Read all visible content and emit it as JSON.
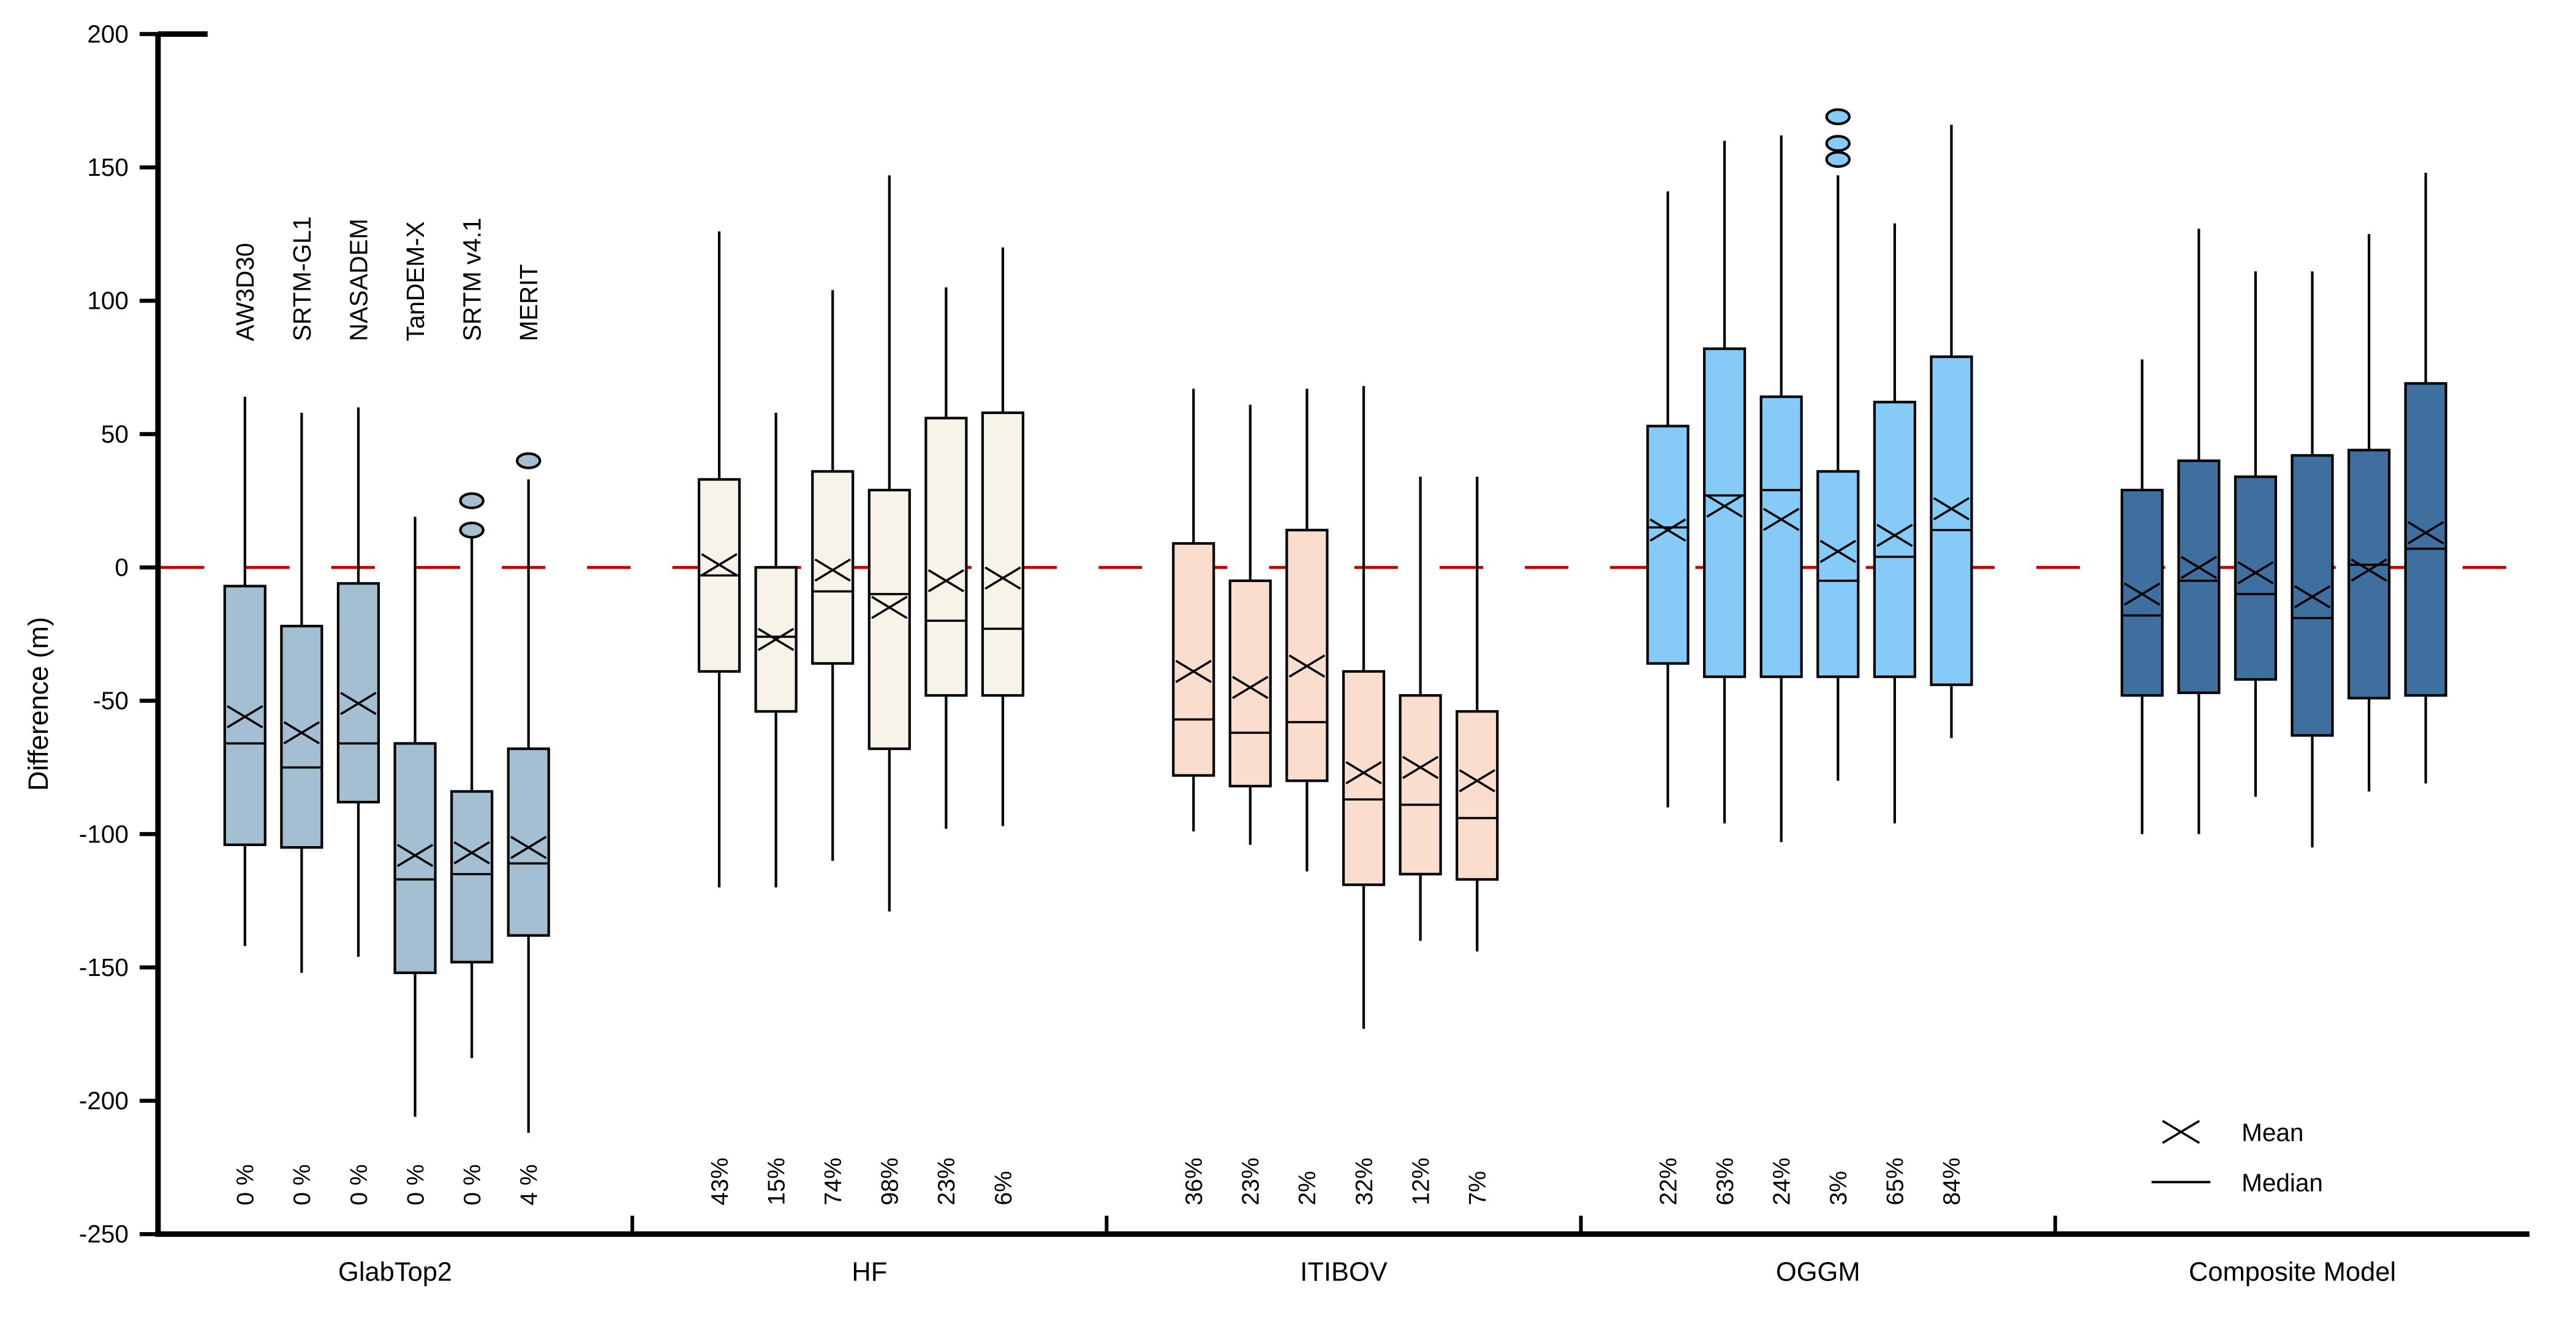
{
  "figure": {
    "background": "#ffffff",
    "axis_color": "#000000",
    "text_color": "#000000"
  },
  "chart_data": {
    "type": "boxplot",
    "title": "",
    "xlabel": "",
    "ylabel": "Difference (m)",
    "ylim": [
      -250,
      200
    ],
    "ytick_step": 50,
    "ytick_labels": [
      "200",
      "150",
      "100",
      "50",
      "0",
      "-50",
      "-100",
      "-150",
      "-200",
      "-250"
    ],
    "grid": false,
    "zero_line": {
      "value": 0,
      "color": "#C00000",
      "style": "dashed"
    },
    "legend": {
      "position": "bottom-right",
      "mean_label": "Mean",
      "median_label": "Median"
    },
    "dem_labels": [
      "AW3D30",
      "SRTM-GL1",
      "NASADEM",
      "TanDEM-X",
      "SRTM v4.1",
      "MERIT"
    ],
    "groups": [
      {
        "name": "GlabTop2",
        "color": "#A4BED2",
        "boxes": [
          {
            "dem": "AW3D30",
            "pct": "0 %",
            "low": -142,
            "q1": -104,
            "median": -66,
            "mean": -56,
            "q3": -7,
            "high": 64,
            "outliers": []
          },
          {
            "dem": "SRTM-GL1",
            "pct": "0 %",
            "low": -152,
            "q1": -105,
            "median": -75,
            "mean": -62,
            "q3": -22,
            "high": 58,
            "outliers": []
          },
          {
            "dem": "NASADEM",
            "pct": "0 %",
            "low": -146,
            "q1": -88,
            "median": -66,
            "mean": -51,
            "q3": -6,
            "high": 60,
            "outliers": []
          },
          {
            "dem": "TanDEM-X",
            "pct": "0 %",
            "low": -206,
            "q1": -152,
            "median": -117,
            "mean": -108,
            "q3": -66,
            "high": 19,
            "outliers": []
          },
          {
            "dem": "SRTM v4.1",
            "pct": "0 %",
            "low": -184,
            "q1": -148,
            "median": -115,
            "mean": -107,
            "q3": -84,
            "high": 11,
            "outliers": [
              25,
              14
            ]
          },
          {
            "dem": "MERIT",
            "pct": "4 %",
            "low": -212,
            "q1": -138,
            "median": -111,
            "mean": -105,
            "q3": -68,
            "high": 33,
            "outliers": [
              40
            ]
          }
        ]
      },
      {
        "name": "HF",
        "color": "#F8F3E8",
        "boxes": [
          {
            "dem": "AW3D30",
            "pct": "43%",
            "low": -120,
            "q1": -39,
            "median": -3,
            "mean": 1,
            "q3": 33,
            "high": 126,
            "outliers": []
          },
          {
            "dem": "SRTM-GL1",
            "pct": "15%",
            "low": -120,
            "q1": -54,
            "median": -26,
            "mean": -27,
            "q3": 0,
            "high": 58,
            "outliers": []
          },
          {
            "dem": "NASADEM",
            "pct": "74%",
            "low": -110,
            "q1": -36,
            "median": -9,
            "mean": -1,
            "q3": 36,
            "high": 104,
            "outliers": []
          },
          {
            "dem": "TanDEM-X",
            "pct": "98%",
            "low": -129,
            "q1": -68,
            "median": -10,
            "mean": -15,
            "q3": 29,
            "high": 147,
            "outliers": []
          },
          {
            "dem": "SRTM v4.1",
            "pct": "23%",
            "low": -98,
            "q1": -48,
            "median": -20,
            "mean": -5,
            "q3": 56,
            "high": 105,
            "outliers": []
          },
          {
            "dem": "MERIT",
            "pct": "6%",
            "low": -97,
            "q1": -48,
            "median": -23,
            "mean": -4,
            "q3": 58,
            "high": 120,
            "outliers": []
          }
        ]
      },
      {
        "name": "ITIBOV",
        "color": "#FBDDCE",
        "boxes": [
          {
            "dem": "AW3D30",
            "pct": "36%",
            "low": -99,
            "q1": -78,
            "median": -57,
            "mean": -39,
            "q3": 9,
            "high": 67,
            "outliers": []
          },
          {
            "dem": "SRTM-GL1",
            "pct": "23%",
            "low": -104,
            "q1": -82,
            "median": -62,
            "mean": -45,
            "q3": -5,
            "high": 61,
            "outliers": []
          },
          {
            "dem": "NASADEM",
            "pct": "2%",
            "low": -114,
            "q1": -80,
            "median": -58,
            "mean": -37,
            "q3": 14,
            "high": 67,
            "outliers": []
          },
          {
            "dem": "TanDEM-X",
            "pct": "32%",
            "low": -173,
            "q1": -119,
            "median": -87,
            "mean": -77,
            "q3": -39,
            "high": 68,
            "outliers": []
          },
          {
            "dem": "SRTM v4.1",
            "pct": "12%",
            "low": -140,
            "q1": -115,
            "median": -89,
            "mean": -75,
            "q3": -48,
            "high": 34,
            "outliers": []
          },
          {
            "dem": "MERIT",
            "pct": "7%",
            "low": -144,
            "q1": -117,
            "median": -94,
            "mean": -80,
            "q3": -54,
            "high": 34,
            "outliers": []
          }
        ]
      },
      {
        "name": "OGGM",
        "color": "#86CAF7",
        "boxes": [
          {
            "dem": "AW3D30",
            "pct": "22%",
            "low": -90,
            "q1": -36,
            "median": 15,
            "mean": 14,
            "q3": 53,
            "high": 141,
            "outliers": []
          },
          {
            "dem": "SRTM-GL1",
            "pct": "63%",
            "low": -96,
            "q1": -41,
            "median": 27,
            "mean": 23,
            "q3": 82,
            "high": 160,
            "outliers": []
          },
          {
            "dem": "NASADEM",
            "pct": "24%",
            "low": -103,
            "q1": -41,
            "median": 29,
            "mean": 18,
            "q3": 64,
            "high": 162,
            "outliers": []
          },
          {
            "dem": "TanDEM-X",
            "pct": "3%",
            "low": -80,
            "q1": -41,
            "median": -5,
            "mean": 6,
            "q3": 36,
            "high": 147,
            "outliers": [
              169,
              159,
              153
            ]
          },
          {
            "dem": "SRTM v4.1",
            "pct": "65%",
            "low": -96,
            "q1": -41,
            "median": 4,
            "mean": 12,
            "q3": 62,
            "high": 129,
            "outliers": []
          },
          {
            "dem": "MERIT",
            "pct": "84%",
            "low": -64,
            "q1": -44,
            "median": 14,
            "mean": 22,
            "q3": 79,
            "high": 166,
            "outliers": []
          }
        ]
      },
      {
        "name": "Composite Model",
        "color": "#3E6F9F",
        "boxes": [
          {
            "dem": "AW3D30",
            "pct": "",
            "low": -100,
            "q1": -48,
            "median": -18,
            "mean": -10,
            "q3": 29,
            "high": 78,
            "outliers": []
          },
          {
            "dem": "SRTM-GL1",
            "pct": "",
            "low": -100,
            "q1": -47,
            "median": -5,
            "mean": 0,
            "q3": 40,
            "high": 127,
            "outliers": []
          },
          {
            "dem": "NASADEM",
            "pct": "",
            "low": -86,
            "q1": -42,
            "median": -10,
            "mean": -2,
            "q3": 34,
            "high": 111,
            "outliers": []
          },
          {
            "dem": "TanDEM-X",
            "pct": "",
            "low": -105,
            "q1": -63,
            "median": -19,
            "mean": -11,
            "q3": 42,
            "high": 111,
            "outliers": []
          },
          {
            "dem": "SRTM v4.1",
            "pct": "",
            "low": -84,
            "q1": -49,
            "median": 1,
            "mean": -1,
            "q3": 44,
            "high": 125,
            "outliers": []
          },
          {
            "dem": "MERIT",
            "pct": "",
            "low": -81,
            "q1": -48,
            "median": 7,
            "mean": 13,
            "q3": 69,
            "high": 148,
            "outliers": []
          }
        ]
      }
    ]
  }
}
